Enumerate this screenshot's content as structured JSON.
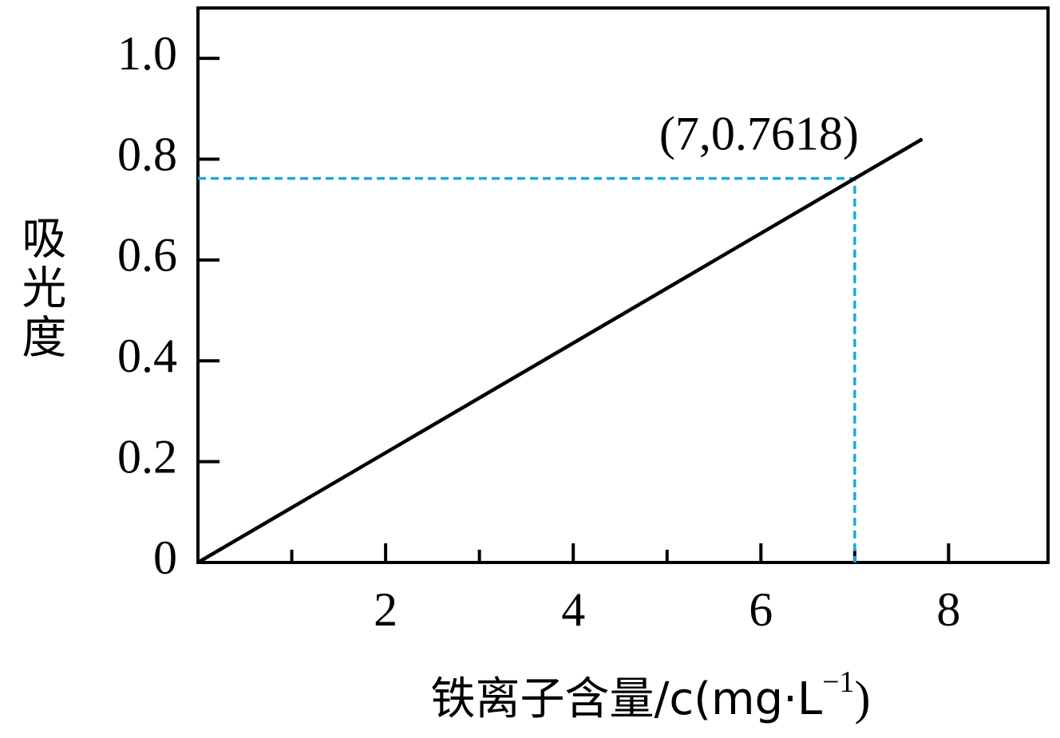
{
  "chart_data": {
    "type": "line",
    "xlabel": [
      "铁离子含量/c(mg·L",
      "−1",
      ")"
    ],
    "ylabel": "吸光度",
    "x": [
      0,
      7,
      7.72
    ],
    "series": [
      {
        "color": "#000000",
        "values": [
          0,
          0.7618,
          0.84
        ]
      }
    ],
    "xlim": [
      0,
      9.06
    ],
    "ylim": [
      0,
      1.1
    ],
    "xticks": [
      2,
      4,
      6,
      8
    ],
    "xminor_ticks": [
      1,
      3,
      5,
      7
    ],
    "yticks": [
      0,
      {
        "value": 0.2,
        "label": "0.2"
      },
      {
        "value": 0.4,
        "label": "0.4"
      },
      {
        "value": 0.6,
        "label": "0.6"
      },
      {
        "value": 0.8,
        "label": "0.8"
      },
      {
        "value": 1.0,
        "label": "1.0"
      }
    ],
    "annotation": {
      "x": 7,
      "y": 0.7618,
      "label": "(7,0.7618)",
      "color": "#1ca8e0"
    }
  }
}
